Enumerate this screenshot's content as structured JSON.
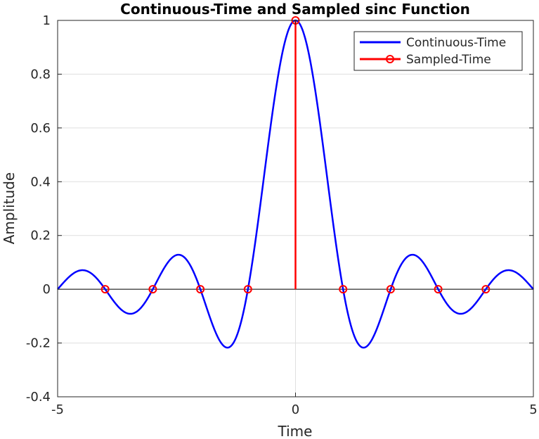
{
  "chart_data": {
    "type": "line",
    "title": "Continuous-Time and Sampled sinc Function",
    "xlabel": "Time",
    "ylabel": "Amplitude",
    "xlim": [
      -5,
      5
    ],
    "ylim": [
      -0.4,
      1
    ],
    "xticks": [
      "-5",
      "0",
      "5"
    ],
    "yticks": [
      "-0.4",
      "-0.2",
      "0",
      "0.2",
      "0.4",
      "0.6",
      "0.8",
      "1"
    ],
    "grid": true,
    "legend_position": "top-right",
    "series": [
      {
        "name": "Continuous-Time",
        "style": "line",
        "color": "#0000ff",
        "function": "sinc(t) = sin(pi t)/(pi t)",
        "x": [
          -5,
          -4.5,
          -4,
          -3.5,
          -3,
          -2.5,
          -2,
          -1.5,
          -1,
          -0.5,
          0,
          0.5,
          1,
          1.5,
          2,
          2.5,
          3,
          3.5,
          4,
          4.5,
          5
        ],
        "y": [
          0,
          0.0707,
          0,
          -0.0909,
          0,
          0.1273,
          0,
          -0.2122,
          0,
          0.6366,
          1,
          0.6366,
          0,
          -0.2122,
          0,
          0.1273,
          0,
          -0.0909,
          0,
          0.0707,
          0
        ]
      },
      {
        "name": "Sampled-Time",
        "style": "stem",
        "color": "#ff0000",
        "x": [
          -4,
          -3,
          -2,
          -1,
          0,
          1,
          2,
          3,
          4
        ],
        "y": [
          0,
          0,
          0,
          0,
          1,
          0,
          0,
          0,
          0
        ]
      }
    ]
  }
}
